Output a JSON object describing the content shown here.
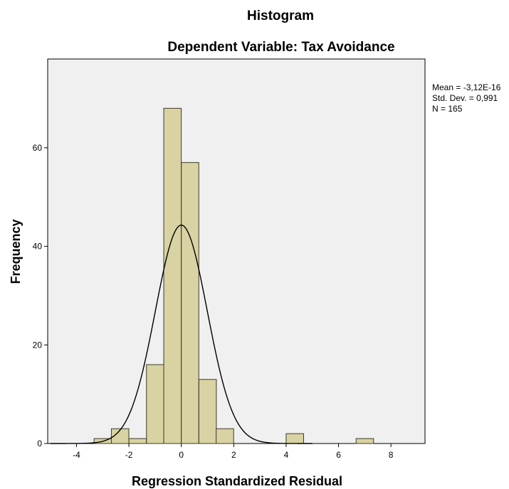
{
  "chart_data": {
    "type": "bar",
    "title": "Histogram",
    "subtitle": "Dependent Variable: Tax Avoidance",
    "xlabel": "Regression Standardized Residual",
    "ylabel": "Frequency",
    "xlim": [
      -5.1,
      9.3
    ],
    "ylim": [
      0,
      78
    ],
    "grid": false,
    "x_ticks": [
      "-4",
      "-2",
      "0",
      "2",
      "4",
      "6",
      "8"
    ],
    "y_ticks": [
      "0",
      "20",
      "40",
      "60"
    ],
    "bin_width": 0.667,
    "bins": [
      {
        "start": -3.33,
        "count": 1
      },
      {
        "start": -2.67,
        "count": 3
      },
      {
        "start": -2.0,
        "count": 1
      },
      {
        "start": -1.33,
        "count": 16
      },
      {
        "start": -0.67,
        "count": 68
      },
      {
        "start": 0.0,
        "count": 57
      },
      {
        "start": 0.67,
        "count": 13
      },
      {
        "start": 1.33,
        "count": 3
      },
      {
        "start": 4.0,
        "count": 2
      },
      {
        "start": 6.67,
        "count": 1
      }
    ],
    "normal_curve": {
      "mean": 0,
      "std": 0.991,
      "n": 165
    },
    "stats": [
      "Mean = -3,12E-16",
      "Std. Dev. = 0,991",
      "N = 165"
    ],
    "colors": {
      "bar_fill": "#d9d3a3",
      "bar_stroke": "#3d3a2a",
      "plot_bg": "#f0f0f0",
      "curve": "#000000"
    }
  }
}
